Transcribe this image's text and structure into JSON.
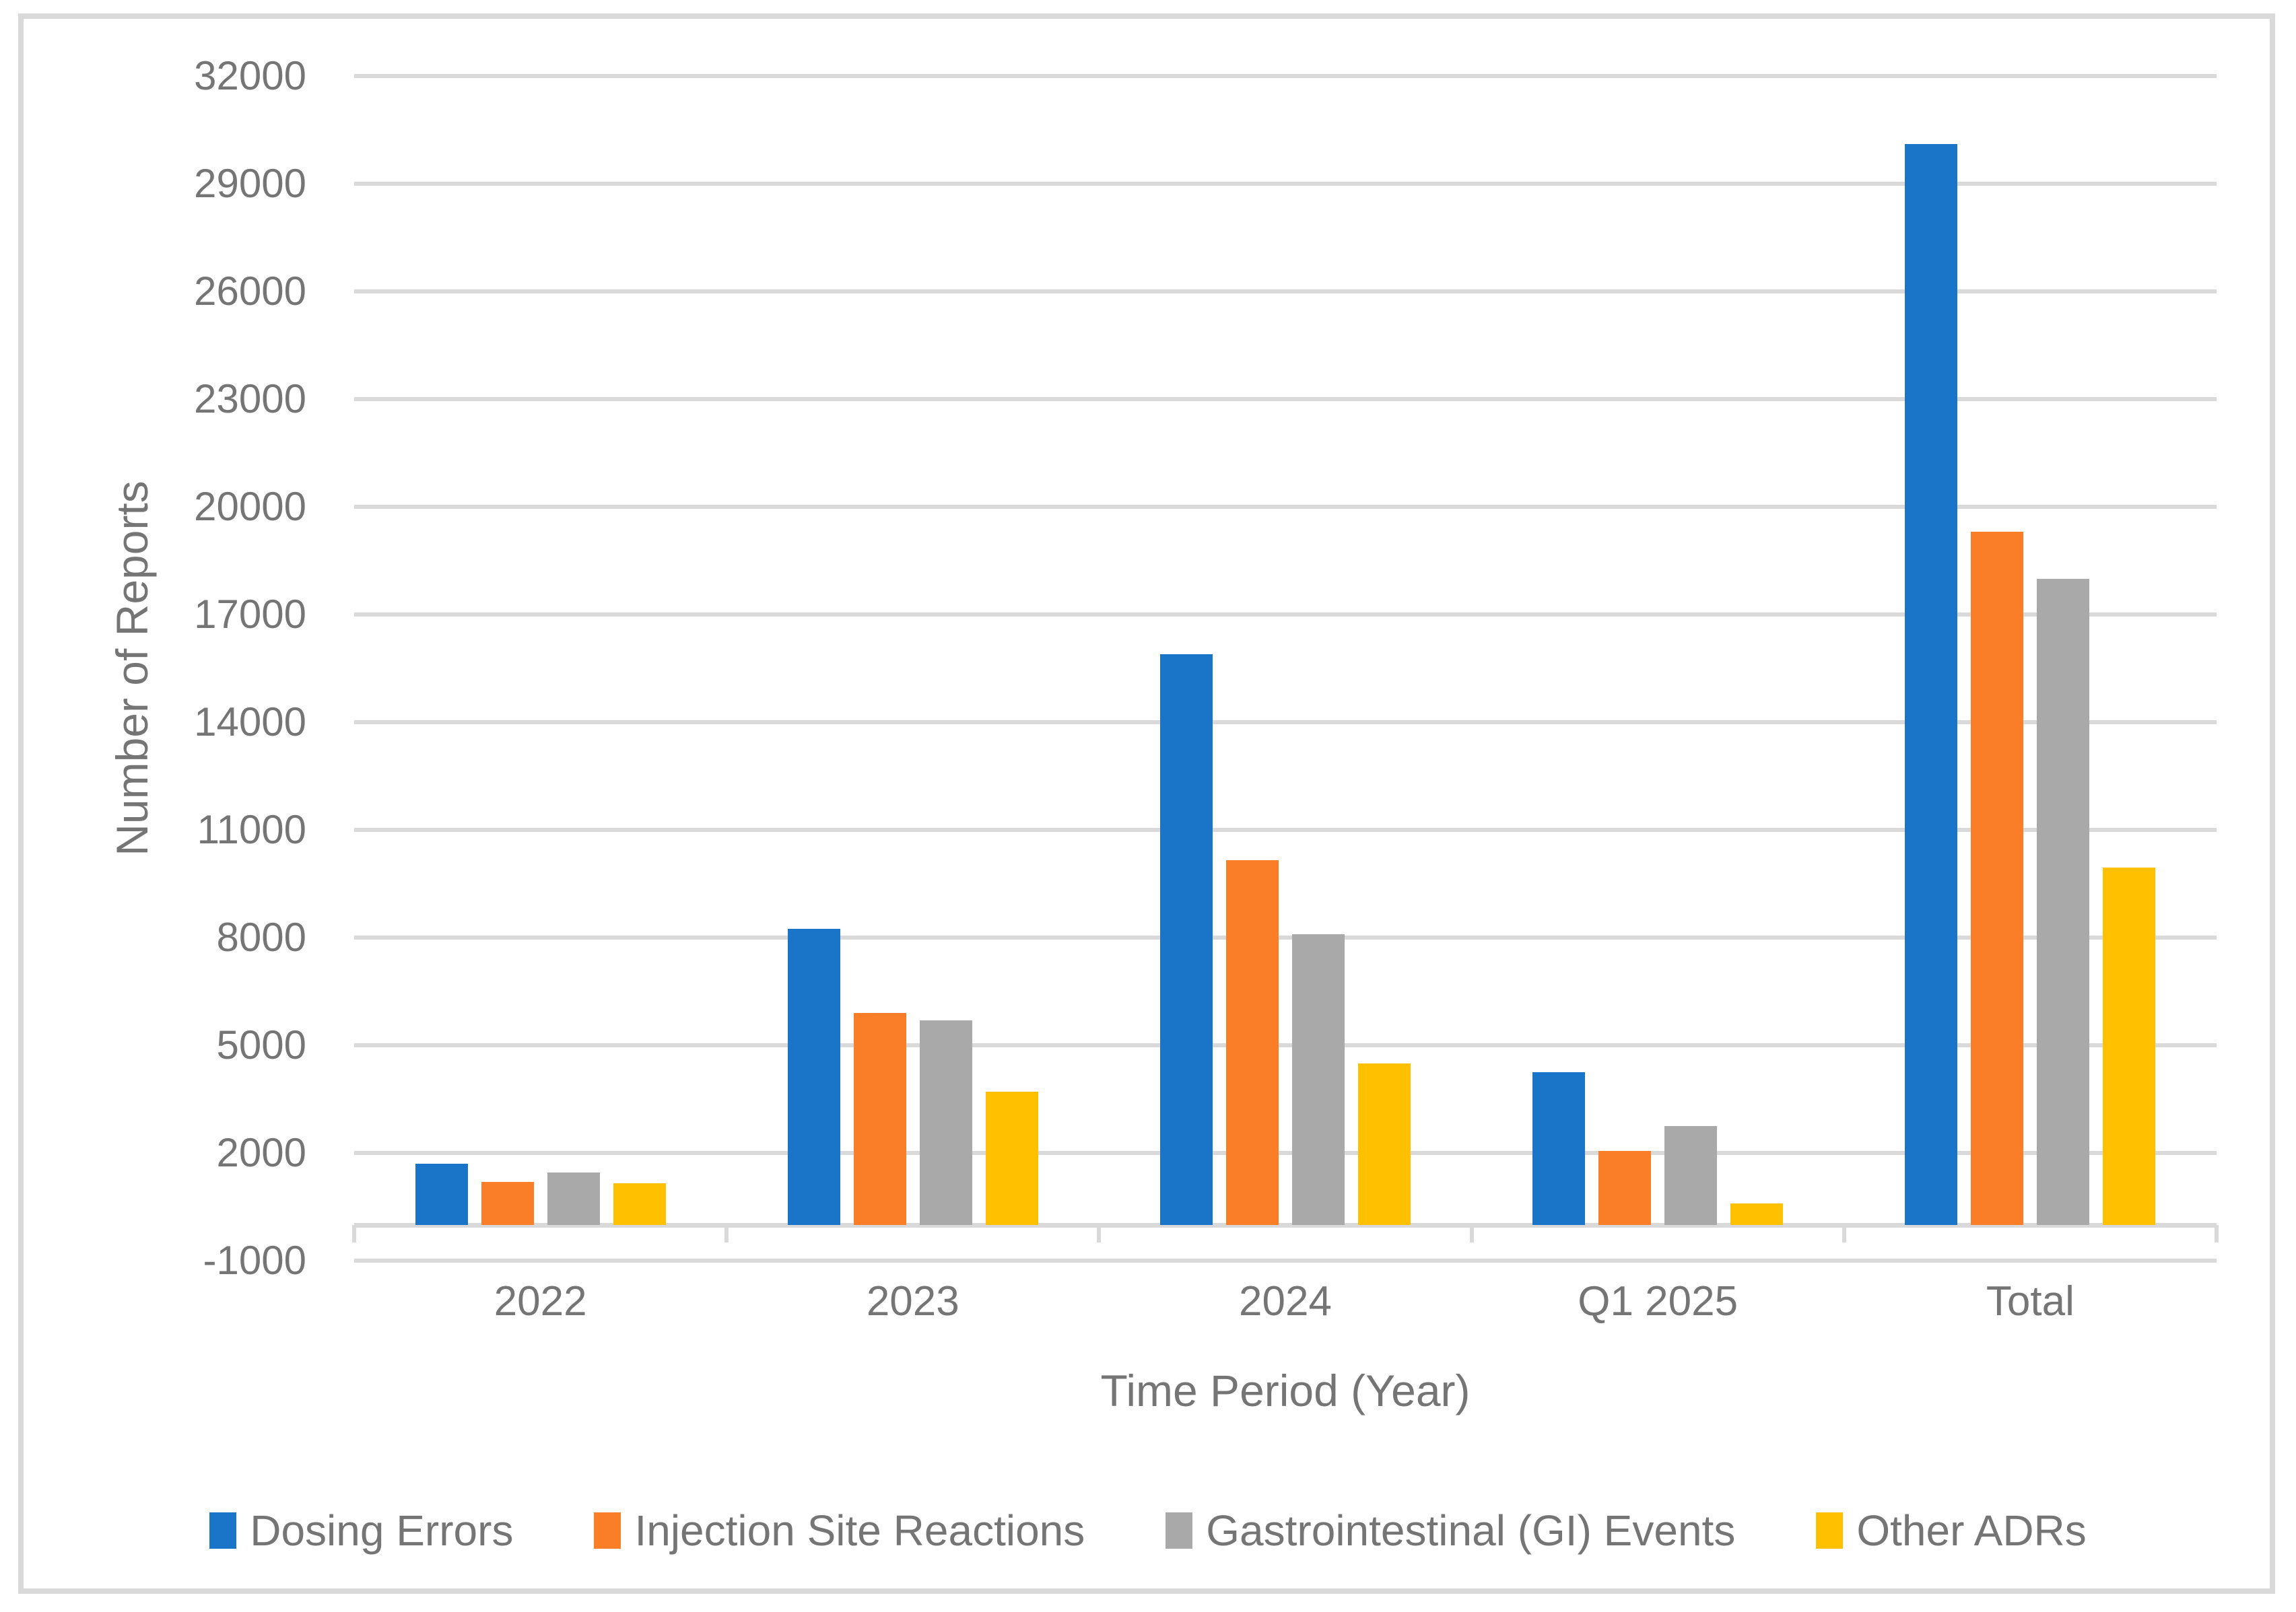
{
  "chart_data": {
    "type": "bar",
    "title": "",
    "xlabel": "Time Period (Year)",
    "ylabel": "Number of Reports",
    "categories": [
      "2022",
      "2023",
      "2024",
      "Q1 2025",
      "Total"
    ],
    "series": [
      {
        "name": "Dosing Errors",
        "color": "#1a74c8",
        "values": [
          1700,
          8250,
          15900,
          4250,
          30100
        ]
      },
      {
        "name": "Injection Site Reactions",
        "color": "#fa7d28",
        "values": [
          1200,
          5900,
          10150,
          2050,
          19300
        ]
      },
      {
        "name": "Gastrointestinal (GI) Events",
        "color": "#a9a9a9",
        "values": [
          1450,
          5700,
          8100,
          2750,
          18000
        ]
      },
      {
        "name": "Other ADRs",
        "color": "#ffc000",
        "values": [
          1150,
          3700,
          4500,
          600,
          9950
        ]
      }
    ],
    "y_axis": {
      "min": -1000,
      "max": 32000,
      "step": 3000,
      "tick_labels": [
        "-1000",
        "2000",
        "5000",
        "8000",
        "11000",
        "14000",
        "17000",
        "20000",
        "23000",
        "26000",
        "29000",
        "32000"
      ]
    },
    "grid": true,
    "legend_position": "bottom",
    "colors": {
      "gridline": "#d9d9d9",
      "axis_text": "#757575",
      "frame_border": "#d9d9d9",
      "background": "#ffffff"
    }
  }
}
